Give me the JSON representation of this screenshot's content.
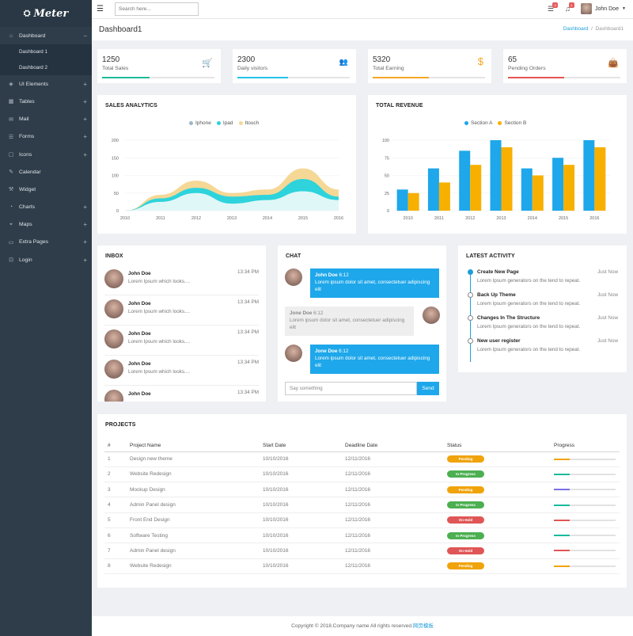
{
  "app": {
    "brand": "Meter"
  },
  "sidebar": {
    "items": [
      {
        "label": "Dashboard",
        "icon": "home-icon",
        "expanded": true,
        "children": [
          {
            "label": "Dashboard 1",
            "active": true
          },
          {
            "label": "Dashboard 2"
          }
        ]
      },
      {
        "label": "UI Elements",
        "icon": "cube-icon",
        "plus": true
      },
      {
        "label": "Tables",
        "icon": "grid-icon",
        "plus": true
      },
      {
        "label": "Mail",
        "icon": "mail-icon",
        "plus": true
      },
      {
        "label": "Forms",
        "icon": "form-icon",
        "plus": true
      },
      {
        "label": "Icons",
        "icon": "square-icon",
        "plus": true
      },
      {
        "label": "Calendar",
        "icon": "edit-icon",
        "plus": false
      },
      {
        "label": "Widget",
        "icon": "wrench-icon",
        "plus": false
      },
      {
        "label": "Charts",
        "icon": "pie-icon",
        "plus": true
      },
      {
        "label": "Maps",
        "icon": "pin-icon",
        "plus": true
      },
      {
        "label": "Extra Pages",
        "icon": "folder-icon",
        "plus": true
      },
      {
        "label": "Login",
        "icon": "lock-icon",
        "plus": true
      }
    ]
  },
  "topbar": {
    "search_placeholder": "Search here...",
    "messages_badge": "3",
    "notifications_badge": "4",
    "user_name": "John Doe"
  },
  "page": {
    "title": "Dashboard1",
    "breadcrumb": [
      "Dashboard",
      "Dashboard1"
    ]
  },
  "stats": [
    {
      "value": "1250",
      "label": "Total Sales",
      "icon": "cart-icon",
      "color": "#1bb99a",
      "progress": 0.42
    },
    {
      "value": "2300",
      "label": "Daily visitors",
      "icon": "users-icon",
      "color": "#24c4e6",
      "progress": 0.45
    },
    {
      "value": "5320",
      "label": "Total Earning",
      "icon": "dollar-icon",
      "color": "#f5a623",
      "progress": 0.5
    },
    {
      "value": "65",
      "label": "Pending Orders",
      "icon": "bag-icon",
      "color": "#e55454",
      "progress": 0.5
    }
  ],
  "sales_analytics": {
    "title": "SALES ANALYTICS"
  },
  "total_revenue": {
    "title": "TOTAL REVENUE"
  },
  "chart_data": [
    {
      "type": "area",
      "title": "SALES ANALYTICS",
      "x": [
        "2010",
        "2011",
        "2012",
        "2013",
        "2014",
        "2015",
        "2016"
      ],
      "ylim": [
        0,
        200
      ],
      "yticks": [
        0,
        50,
        100,
        150,
        200
      ],
      "legend_position": "top",
      "series": [
        {
          "name": "Iphone",
          "color": "#e0f7f7",
          "values": [
            0,
            25,
            50,
            20,
            30,
            55,
            30
          ]
        },
        {
          "name": "Ipad",
          "color": "#2ed3dc",
          "values": [
            0,
            35,
            65,
            40,
            45,
            90,
            40
          ]
        },
        {
          "name": "Itouch",
          "color": "#f5d896",
          "values": [
            0,
            45,
            85,
            50,
            60,
            120,
            60
          ]
        }
      ]
    },
    {
      "type": "bar",
      "title": "TOTAL REVENUE",
      "categories": [
        "2010",
        "2011",
        "2012",
        "2013",
        "2014",
        "2015",
        "2016"
      ],
      "ylim": [
        0,
        100
      ],
      "yticks": [
        0,
        25,
        50,
        75,
        100
      ],
      "legend_position": "top",
      "series": [
        {
          "name": "Section A",
          "color": "#1ea7ea",
          "values": [
            30,
            60,
            85,
            100,
            60,
            75,
            100
          ]
        },
        {
          "name": "Section B",
          "color": "#f7b000",
          "values": [
            25,
            40,
            65,
            90,
            50,
            65,
            90
          ]
        }
      ]
    }
  ],
  "inbox": {
    "title": "INBOX",
    "items": [
      {
        "name": "John Doe",
        "text": "Lorem Ipsum which looks....",
        "time": "13:34 PM"
      },
      {
        "name": "John Doe",
        "text": "Lorem Ipsum which looks....",
        "time": "13:34 PM"
      },
      {
        "name": "John Doe",
        "text": "Lorem Ipsum which looks....",
        "time": "13:34 PM"
      },
      {
        "name": "John Doe",
        "text": "Lorem Ipsum which looks....",
        "time": "13:34 PM"
      },
      {
        "name": "John Doe",
        "text": "",
        "time": "13:34 PM"
      }
    ]
  },
  "chat": {
    "title": "CHAT",
    "messages": [
      {
        "name": "John Doe",
        "time": "6:12",
        "text": "Lorem ipsum dolor sit amet, consectetuer adipiscing elit"
      },
      {
        "name": "Jone Doe",
        "time": "6:12",
        "text": "Lorem ipsum dolor sit amet, consectetuer adipiscing elit"
      },
      {
        "name": "Jone Doe",
        "time": "6:12",
        "text": "Lorem ipsum dolor sit amet, consectetuer adipiscing elit"
      }
    ],
    "input_placeholder": "Say something",
    "send_label": "Send"
  },
  "activity": {
    "title": "LATEST ACTIVITY",
    "items": [
      {
        "title": "Create New Page",
        "time": "Just Now",
        "desc": "Lorem Ipsum generators on the tend to repeat."
      },
      {
        "title": "Back Up Theme",
        "time": "Just Now",
        "desc": "Lorem Ipsum generators on the tend to repeat."
      },
      {
        "title": "Changes In The Structure",
        "time": "Just Now",
        "desc": "Lorem Ipsum generators on the tend to repeat."
      },
      {
        "title": "New user register",
        "time": "Just Now",
        "desc": "Lorem Ipsum generators on the tend to repeat."
      }
    ]
  },
  "projects": {
    "title": "PROJECTS",
    "headers": [
      "#",
      "Project Name",
      "Start Date",
      "Deadline Date",
      "Status",
      "Progress"
    ],
    "rows": [
      {
        "num": "1",
        "name": "Design new theme",
        "start": "10/10/2016",
        "deadline": "12/11/2016",
        "status": "Pending",
        "status_color": "#f0a30a",
        "progress": 0.25,
        "progress_color": "#f0a30a"
      },
      {
        "num": "2",
        "name": "Website Redesign",
        "start": "10/10/2016",
        "deadline": "12/11/2016",
        "status": "In Progress",
        "status_color": "#4caf50",
        "progress": 0.25,
        "progress_color": "#1bb99a"
      },
      {
        "num": "3",
        "name": "Mockup Design",
        "start": "10/10/2016",
        "deadline": "12/11/2016",
        "status": "Pending",
        "status_color": "#f0a30a",
        "progress": 0.25,
        "progress_color": "#7b6fe6"
      },
      {
        "num": "4",
        "name": "Admin Panel design",
        "start": "10/10/2016",
        "deadline": "12/11/2016",
        "status": "In Progress",
        "status_color": "#4caf50",
        "progress": 0.25,
        "progress_color": "#1bb99a"
      },
      {
        "num": "5",
        "name": "Front End Design",
        "start": "10/10/2016",
        "deadline": "12/11/2016",
        "status": "On Hold",
        "status_color": "#e05555",
        "progress": 0.25,
        "progress_color": "#e05555"
      },
      {
        "num": "6",
        "name": "Software Testing",
        "start": "10/10/2016",
        "deadline": "12/11/2016",
        "status": "In Progress",
        "status_color": "#4caf50",
        "progress": 0.25,
        "progress_color": "#1bb99a"
      },
      {
        "num": "7",
        "name": "Admin Panel design",
        "start": "10/10/2016",
        "deadline": "12/11/2016",
        "status": "On Hold",
        "status_color": "#e05555",
        "progress": 0.25,
        "progress_color": "#e05555"
      },
      {
        "num": "8",
        "name": "Website Redesign",
        "start": "10/10/2016",
        "deadline": "12/11/2016",
        "status": "Pending",
        "status_color": "#f0a30a",
        "progress": 0.25,
        "progress_color": "#f0a30a"
      }
    ]
  },
  "footer": {
    "text": "Copyright © 2018.Company name All rights reserved.",
    "link": "网页模板"
  }
}
